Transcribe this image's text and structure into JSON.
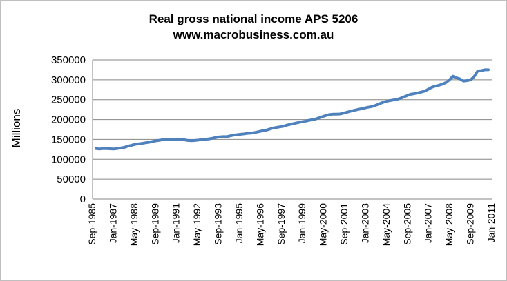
{
  "chart_data": {
    "type": "line",
    "title": "Real gross national income APS 5206",
    "subtitle": "www.macrobusiness.com.au",
    "xlabel": "",
    "ylabel": "Millions",
    "ylim": [
      0,
      350000
    ],
    "yticks": [
      0,
      50000,
      100000,
      150000,
      200000,
      250000,
      300000,
      350000
    ],
    "xtick_labels": [
      "Sep-1985",
      "Jan-1987",
      "May-1988",
      "Sep-1989",
      "Jan-1991",
      "May-1992",
      "Sep-1993",
      "Jan-1995",
      "May-1996",
      "Sep-1997",
      "Jan-1999",
      "May-2000",
      "Sep-2001",
      "Jan-2003",
      "May-2004",
      "Sep-2005",
      "Jan-2007",
      "May-2008",
      "Sep-2009",
      "Jan-2011"
    ],
    "x_start": "Sep-1985",
    "x_end": "Jan-2011",
    "grid": "horizontal",
    "legend": "none",
    "series_color": "#4f81bd",
    "series": [
      {
        "values": [
          127000,
          126000,
          127000,
          127000,
          126500,
          126000,
          127000,
          128500,
          130000,
          133000,
          135000,
          137500,
          139000,
          140000,
          141500,
          143000,
          145000,
          146500,
          148000,
          149500,
          150000,
          149500,
          150000,
          151000,
          150500,
          149000,
          147500,
          147000,
          147500,
          148500,
          149500,
          150500,
          151500,
          153000,
          155000,
          156500,
          157000,
          157000,
          159000,
          161000,
          162000,
          163000,
          164000,
          165500,
          166000,
          167500,
          169500,
          171500,
          173000,
          175500,
          178500,
          180000,
          181500,
          183000,
          186000,
          188000,
          190000,
          192000,
          194000,
          195500,
          197500,
          199500,
          201000,
          204000,
          207000,
          210000,
          212500,
          213500,
          213500,
          214000,
          216000,
          218500,
          221000,
          223000,
          225000,
          227000,
          229000,
          231000,
          232500,
          235500,
          239000,
          242500,
          245500,
          247500,
          249000,
          250500,
          253000,
          256500,
          260000,
          263500,
          265000,
          267000,
          269000,
          271500,
          276000,
          281000,
          284000,
          286000,
          289000,
          293000,
          300000,
          309000,
          305000,
          302000,
          297000,
          298000,
          300000,
          308000,
          322000,
          323000,
          325000,
          325000
        ]
      }
    ]
  }
}
